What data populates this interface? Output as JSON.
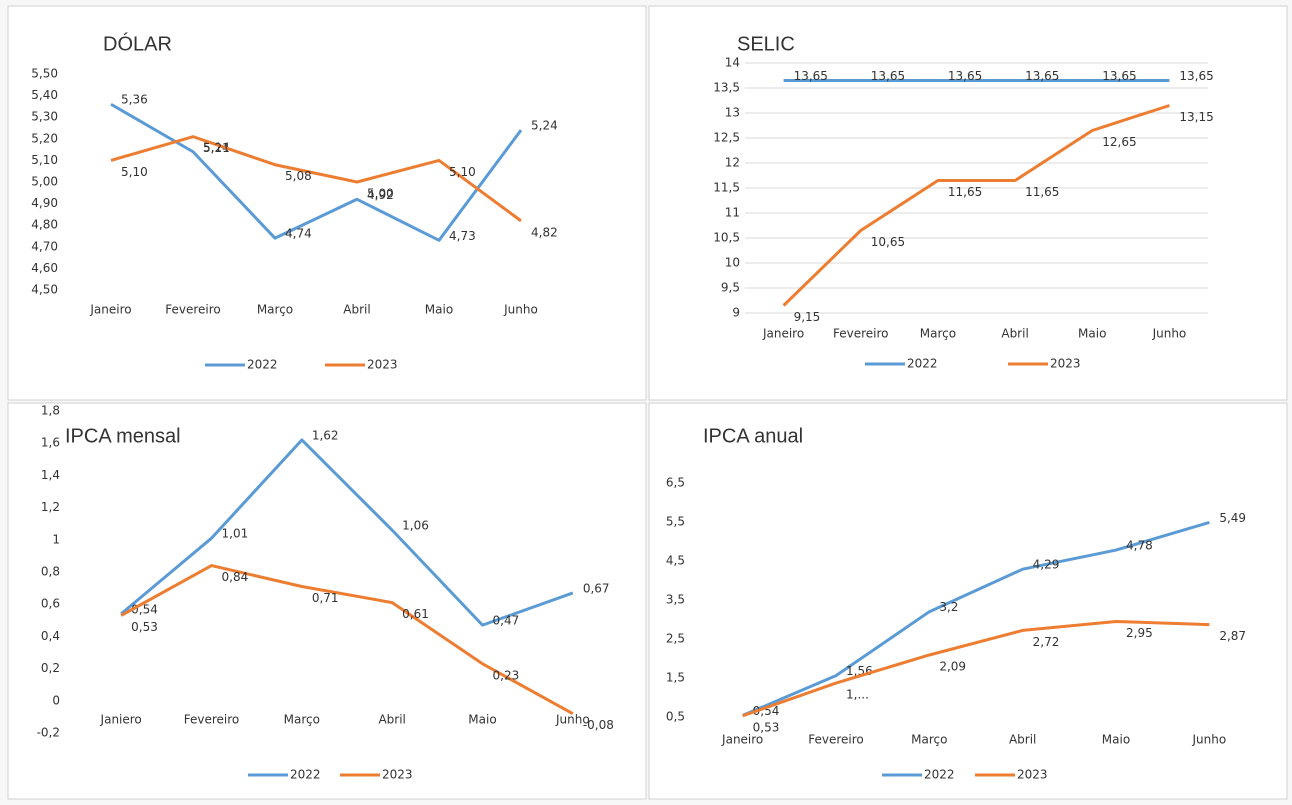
{
  "chart_data": [
    {
      "type": "line",
      "title": "DÓLAR",
      "categories": [
        "Janeiro",
        "Fevereiro",
        "Março",
        "Abril",
        "Maio",
        "Junho"
      ],
      "series": [
        {
          "name": "2022",
          "color": "#5b9bd5",
          "values": [
            5.36,
            5.14,
            4.74,
            4.92,
            4.73,
            5.24
          ],
          "value_labels": [
            "5,36",
            "5,14",
            "4,74",
            "4,92",
            "4,73",
            "5,24"
          ]
        },
        {
          "name": "2023",
          "color": "#ed7d31",
          "values": [
            5.1,
            5.21,
            5.08,
            5.0,
            5.1,
            4.82
          ],
          "value_labels": [
            "5,10",
            "5,21",
            "5,08",
            "5,00",
            "5,10",
            "4,82"
          ]
        }
      ],
      "ylim": [
        4.5,
        5.5
      ],
      "yticks": [
        {
          "value": 4.5,
          "label": "4,50"
        },
        {
          "value": 4.6,
          "label": "4,60"
        },
        {
          "value": 4.7,
          "label": "4,70"
        },
        {
          "value": 4.8,
          "label": "4,80"
        },
        {
          "value": 4.9,
          "label": "4,90"
        },
        {
          "value": 5.0,
          "label": "5,00"
        },
        {
          "value": 5.1,
          "label": "5,10"
        },
        {
          "value": 5.2,
          "label": "5,20"
        },
        {
          "value": 5.3,
          "label": "5,30"
        },
        {
          "value": 5.4,
          "label": "5,40"
        },
        {
          "value": 5.5,
          "label": "5,50"
        }
      ],
      "grid": false,
      "legend": "bottom"
    },
    {
      "type": "line",
      "title": "SELIC",
      "categories": [
        "Janeiro",
        "Fevereiro",
        "Março",
        "Abril",
        "Maio",
        "Junho"
      ],
      "series": [
        {
          "name": "2022",
          "color": "#5b9bd5",
          "values": [
            13.65,
            13.65,
            13.65,
            13.65,
            13.65,
            13.65
          ],
          "value_labels": [
            "13,65",
            "13,65",
            "13,65",
            "13,65",
            "13,65",
            "13,65"
          ]
        },
        {
          "name": "2023",
          "color": "#ed7d31",
          "values": [
            9.15,
            10.65,
            11.65,
            11.65,
            12.65,
            13.15
          ],
          "value_labels": [
            "9,15",
            "10,65",
            "11,65",
            "11,65",
            "12,65",
            "13,15"
          ]
        }
      ],
      "ylim": [
        9,
        14
      ],
      "yticks": [
        9,
        {
          "value": 9.5,
          "label": "9,5"
        },
        10,
        {
          "value": 10.5,
          "label": "10,5"
        },
        11,
        {
          "value": 11.5,
          "label": "11,5"
        },
        12,
        {
          "value": 12.5,
          "label": "12,5"
        },
        13,
        {
          "value": 13.5,
          "label": "13,5"
        },
        14
      ],
      "grid": true,
      "legend": "bottom"
    },
    {
      "type": "line",
      "title": "IPCA mensal",
      "categories": [
        "Janiero",
        "Fevereiro",
        "Março",
        "Abril",
        "Maio",
        "Junho"
      ],
      "series": [
        {
          "name": "2022",
          "color": "#5b9bd5",
          "values": [
            0.54,
            1.01,
            1.62,
            1.06,
            0.47,
            0.67
          ],
          "value_labels": [
            "0,54",
            "1,01",
            "1,62",
            "1,06",
            "0,47",
            "0,67"
          ]
        },
        {
          "name": "2023",
          "color": "#ed7d31",
          "values": [
            0.53,
            0.84,
            0.71,
            0.61,
            0.23,
            -0.08
          ],
          "value_labels": [
            "0,53",
            "0,84",
            "0,71",
            "0,61",
            "0,23",
            "-0,08"
          ]
        }
      ],
      "ylim": [
        -0.2,
        1.8
      ],
      "yticks": [
        {
          "value": -0.2,
          "label": "-0,2"
        },
        0,
        {
          "value": 0.2,
          "label": "0,2"
        },
        {
          "value": 0.4,
          "label": "0,4"
        },
        {
          "value": 0.6,
          "label": "0,6"
        },
        {
          "value": 0.8,
          "label": "0,8"
        },
        1,
        {
          "value": 1.2,
          "label": "1,2"
        },
        {
          "value": 1.4,
          "label": "1,4"
        },
        {
          "value": 1.6,
          "label": "1,6"
        },
        {
          "value": 1.8,
          "label": "1,8"
        }
      ],
      "grid": false,
      "legend": "bottom"
    },
    {
      "type": "line",
      "title": "IPCA anual",
      "categories": [
        "Janeiro",
        "Fevereiro",
        "Março",
        "Abril",
        "Maio",
        "Junho"
      ],
      "series": [
        {
          "name": "2022",
          "color": "#5b9bd5",
          "values": [
            0.54,
            1.56,
            3.2,
            4.29,
            4.78,
            5.49
          ],
          "value_labels": [
            "0,54",
            "1,56",
            "3,2",
            "4,29",
            "4,78",
            "5,49"
          ]
        },
        {
          "name": "2023",
          "color": "#ed7d31",
          "values": [
            0.53,
            1.37,
            2.09,
            2.72,
            2.95,
            2.87
          ],
          "value_labels": [
            "0,53",
            "1,...",
            "2,09",
            "2,72",
            "2,95",
            "2,87"
          ]
        }
      ],
      "ylim": [
        0.5,
        6.5
      ],
      "yticks": [
        {
          "value": 0.5,
          "label": "0,5"
        },
        {
          "value": 1.5,
          "label": "1,5"
        },
        {
          "value": 2.5,
          "label": "2,5"
        },
        {
          "value": 3.5,
          "label": "3,5"
        },
        {
          "value": 4.5,
          "label": "4,5"
        },
        {
          "value": 5.5,
          "label": "5,5"
        },
        {
          "value": 6.5,
          "label": "6,5"
        }
      ],
      "grid": false,
      "legend": "bottom"
    }
  ]
}
